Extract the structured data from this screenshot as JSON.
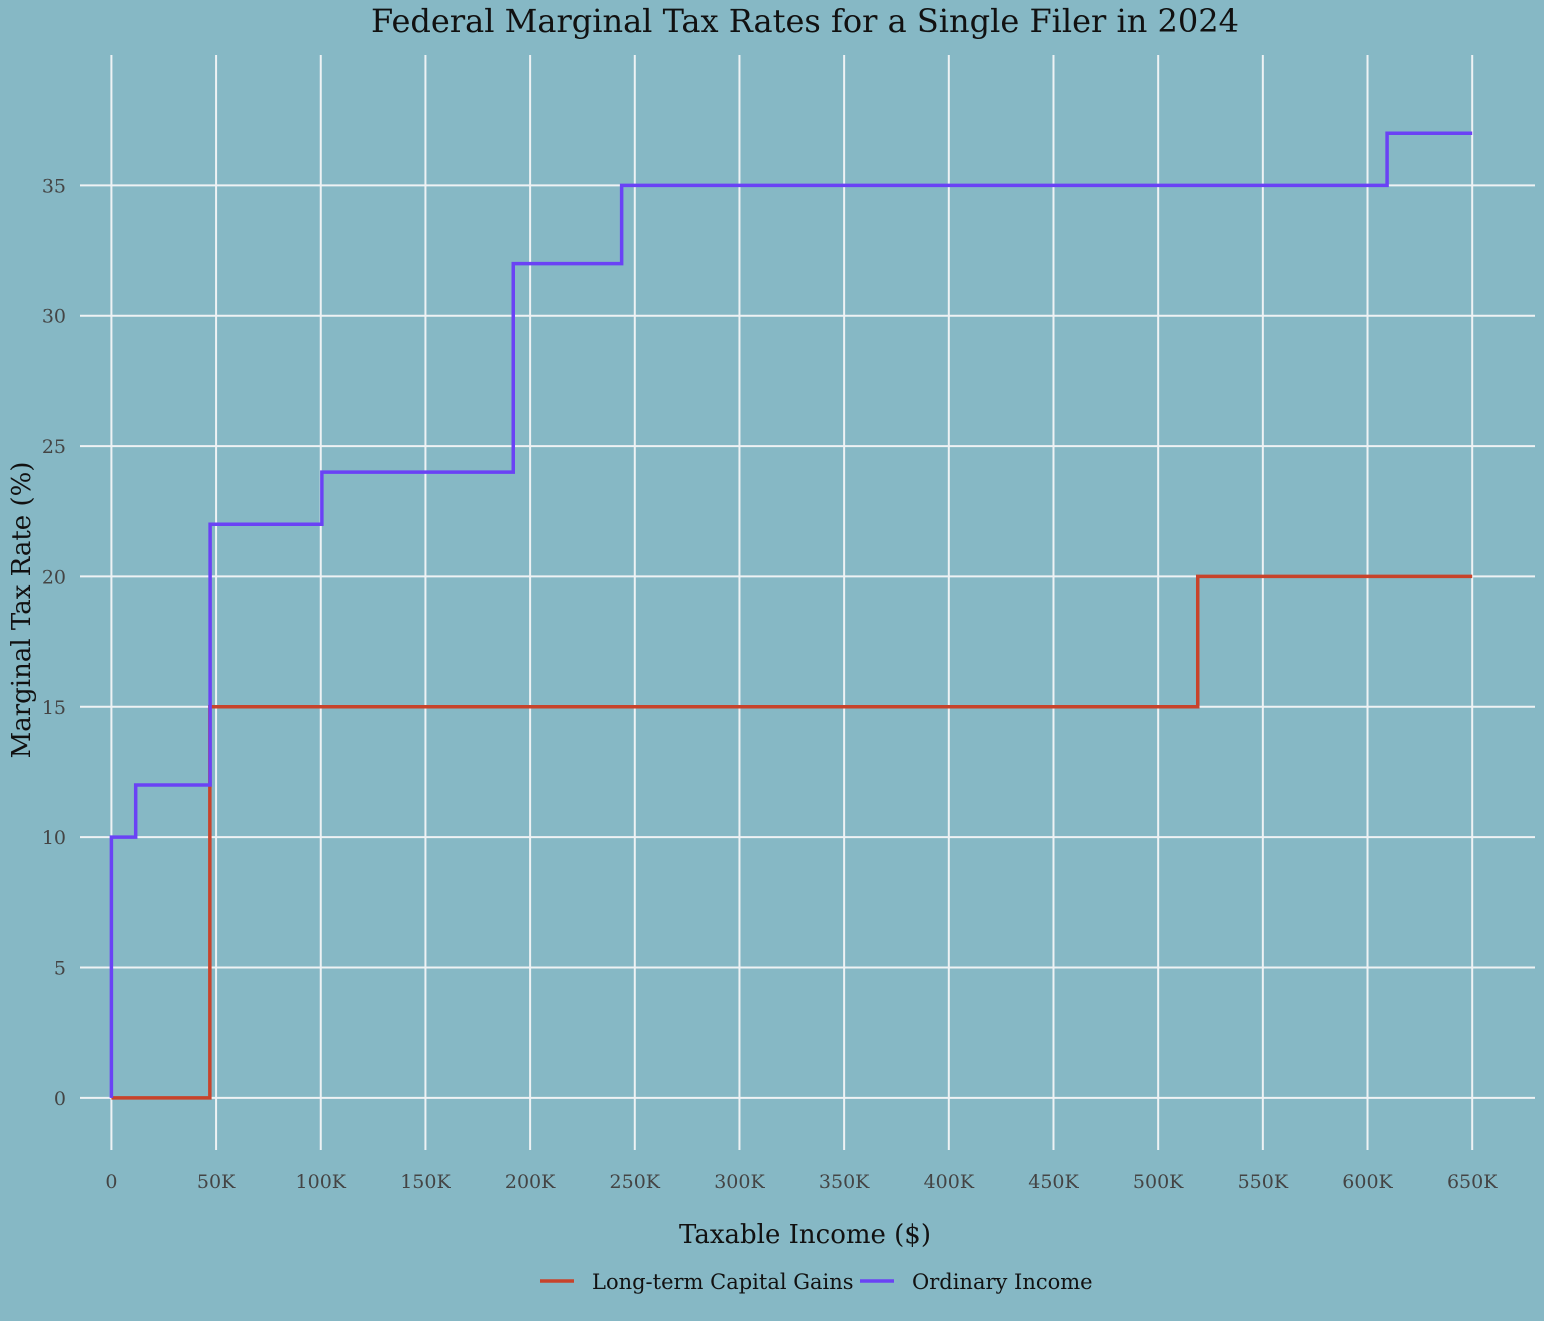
{
  "chart_data": {
    "type": "line",
    "step": true,
    "title": "Federal Marginal Tax Rates for a Single Filer in 2024",
    "xlabel": "Taxable Income ($)",
    "ylabel": "Marginal Tax Rate (%)",
    "xlim": [
      -15000,
      680000
    ],
    "ylim": [
      -2,
      40
    ],
    "x_ticks": [
      0,
      50000,
      100000,
      150000,
      200000,
      250000,
      300000,
      350000,
      400000,
      450000,
      500000,
      550000,
      600000,
      650000
    ],
    "x_tick_labels": [
      "0",
      "50K",
      "100K",
      "150K",
      "200K",
      "250K",
      "300K",
      "350K",
      "400K",
      "450K",
      "500K",
      "550K",
      "600K",
      "650K"
    ],
    "y_ticks": [
      0,
      5,
      10,
      15,
      20,
      25,
      30,
      35
    ],
    "y_tick_labels": [
      "0",
      "5",
      "10",
      "15",
      "20",
      "25",
      "30",
      "35"
    ],
    "grid": true,
    "legend_position": "bottom",
    "series": [
      {
        "name": "Long-term Capital Gains",
        "color": "#c8432b",
        "x": [
          0,
          47025,
          518900,
          650000
        ],
        "y": [
          0,
          15,
          20,
          20
        ]
      },
      {
        "name": "Ordinary Income",
        "color": "#6a42f5",
        "x": [
          0,
          11600,
          47150,
          100525,
          191950,
          243725,
          609350,
          650000
        ],
        "y": [
          10,
          12,
          22,
          24,
          32,
          35,
          37,
          37
        ]
      }
    ]
  }
}
